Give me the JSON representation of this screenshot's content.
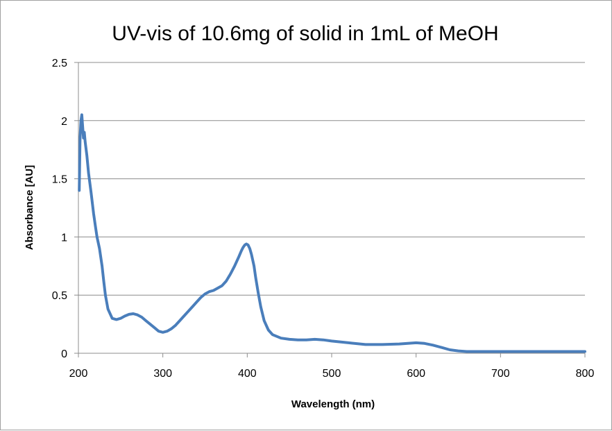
{
  "chart_data": {
    "type": "line",
    "title": "UV-vis of 10.6mg of solid in 1mL of MeOH",
    "xlabel": "Wavelength (nm)",
    "ylabel": "Absorbance [AU]",
    "xlim": [
      200,
      800
    ],
    "ylim": [
      0,
      2.5
    ],
    "xticks": [
      200,
      300,
      400,
      500,
      600,
      700,
      800
    ],
    "yticks": [
      0,
      0.5,
      1,
      1.5,
      2,
      2.5
    ],
    "xtick_labels": [
      "200",
      "300",
      "400",
      "500",
      "600",
      "700",
      "800"
    ],
    "ytick_labels": [
      "0",
      "0.5",
      "1",
      "1.5",
      "2",
      "2.5"
    ],
    "grid": "horizontal",
    "legend": "none",
    "series_color": "#4a7ebb",
    "series": [
      {
        "name": "Absorbance",
        "x": [
          201,
          202,
          203,
          204,
          205,
          206,
          207,
          208,
          210,
          212,
          215,
          218,
          220,
          222,
          225,
          228,
          230,
          232,
          235,
          240,
          245,
          250,
          255,
          260,
          265,
          270,
          275,
          280,
          285,
          290,
          295,
          300,
          305,
          310,
          315,
          320,
          325,
          330,
          335,
          340,
          345,
          350,
          355,
          360,
          365,
          370,
          375,
          380,
          385,
          390,
          393,
          395,
          397,
          399,
          401,
          403,
          405,
          408,
          410,
          413,
          416,
          420,
          425,
          430,
          440,
          450,
          460,
          470,
          480,
          490,
          500,
          520,
          540,
          560,
          580,
          590,
          600,
          610,
          620,
          630,
          640,
          650,
          660,
          680,
          700,
          720,
          750,
          780,
          800
        ],
        "y": [
          1.4,
          1.85,
          2.0,
          2.05,
          1.95,
          1.85,
          1.9,
          1.82,
          1.7,
          1.55,
          1.38,
          1.2,
          1.1,
          1.0,
          0.9,
          0.75,
          0.62,
          0.5,
          0.38,
          0.3,
          0.29,
          0.3,
          0.32,
          0.335,
          0.34,
          0.33,
          0.31,
          0.28,
          0.25,
          0.22,
          0.19,
          0.18,
          0.19,
          0.21,
          0.24,
          0.28,
          0.32,
          0.36,
          0.4,
          0.44,
          0.48,
          0.51,
          0.53,
          0.54,
          0.56,
          0.58,
          0.62,
          0.68,
          0.75,
          0.83,
          0.88,
          0.91,
          0.93,
          0.94,
          0.93,
          0.9,
          0.85,
          0.75,
          0.65,
          0.52,
          0.4,
          0.28,
          0.2,
          0.16,
          0.13,
          0.12,
          0.115,
          0.115,
          0.12,
          0.115,
          0.105,
          0.09,
          0.075,
          0.075,
          0.08,
          0.085,
          0.09,
          0.085,
          0.07,
          0.05,
          0.03,
          0.02,
          0.015,
          0.015,
          0.015,
          0.015,
          0.015,
          0.015,
          0.015
        ]
      }
    ]
  }
}
